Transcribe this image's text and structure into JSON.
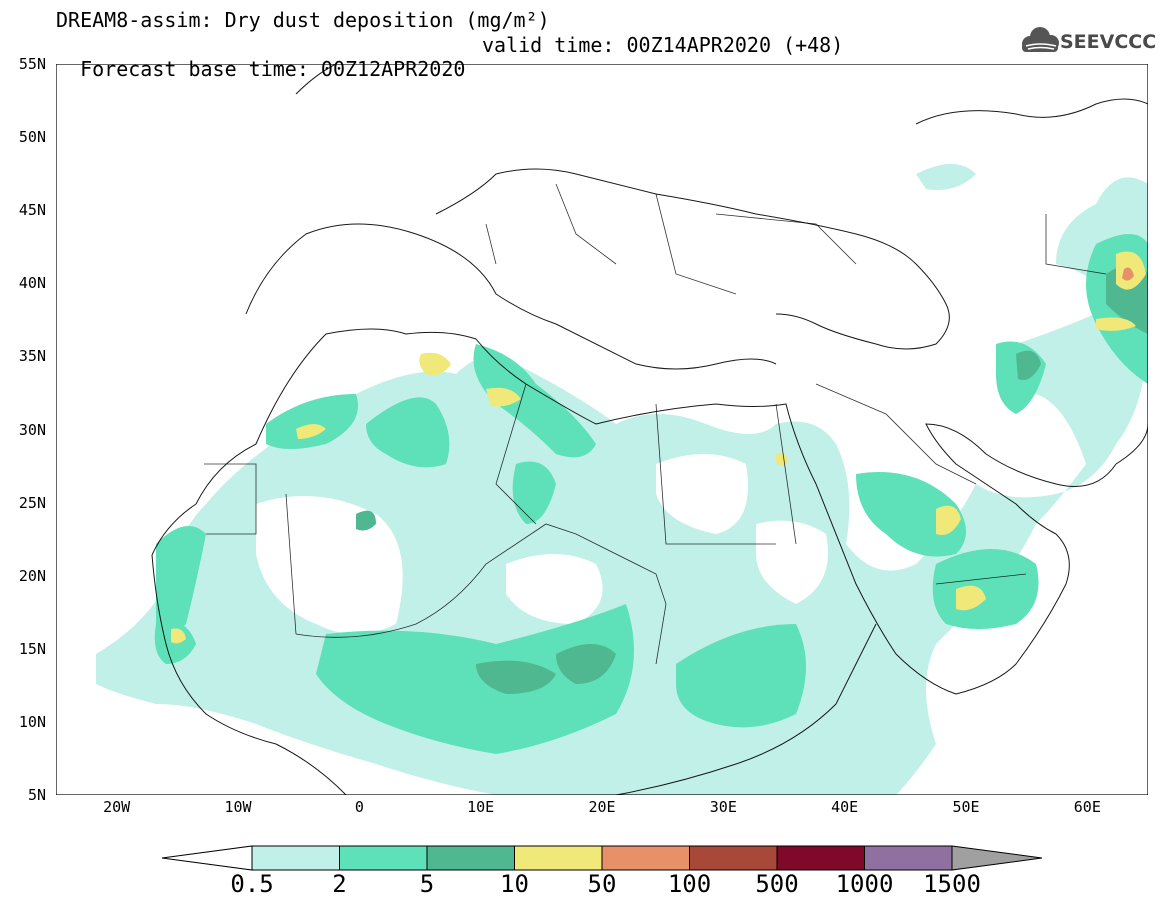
{
  "title": {
    "line1": "DREAM8-assim: Dry dust deposition (mg/m²)",
    "base": "Forecast base time: 00Z12APR2020",
    "valid": "valid time: 00Z14APR2020 (+48)"
  },
  "logo": {
    "text": "SEEVCCC",
    "icon": "cloud-icon",
    "color": "#4a4a4a"
  },
  "axes": {
    "lat_ticks": [
      "55N",
      "50N",
      "45N",
      "40N",
      "35N",
      "30N",
      "25N",
      "20N",
      "15N",
      "10N",
      "5N"
    ],
    "lat_values": [
      55,
      50,
      45,
      40,
      35,
      30,
      25,
      20,
      15,
      10,
      5
    ],
    "lon_ticks": [
      "20W",
      "10W",
      "0",
      "10E",
      "20E",
      "30E",
      "40E",
      "50E",
      "60E"
    ],
    "lon_values": [
      -20,
      -10,
      0,
      10,
      20,
      30,
      40,
      50,
      60
    ],
    "lon_range": [
      -25,
      65
    ],
    "lat_range": [
      5,
      55
    ]
  },
  "legend": {
    "labels": [
      "0.5",
      "2",
      "5",
      "10",
      "50",
      "100",
      "500",
      "1000",
      "1500"
    ],
    "colors": [
      "#c0f0e8",
      "#5ee0b8",
      "#50b890",
      "#f0e878",
      "#e89068",
      "#a84838",
      "#800828",
      "#9070a0",
      "#a0a0a0"
    ]
  }
}
